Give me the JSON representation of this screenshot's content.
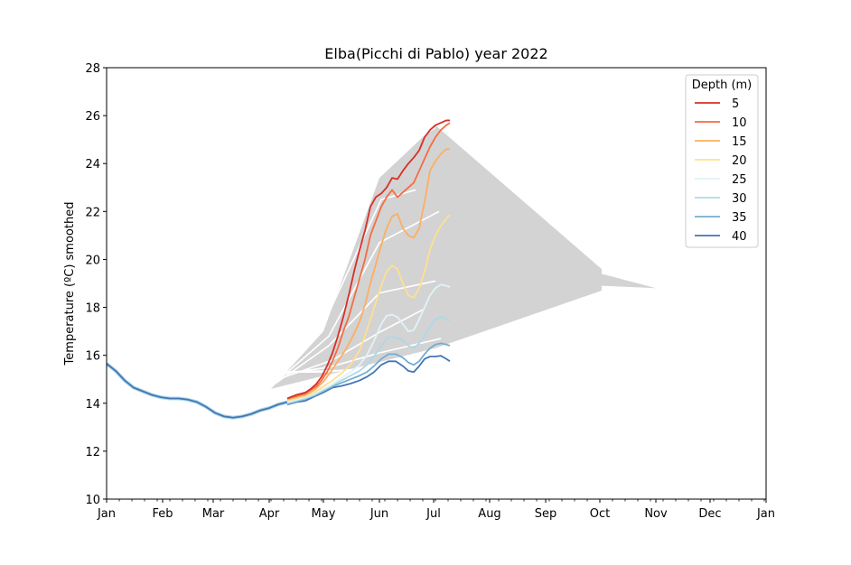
{
  "chart_data": {
    "type": "line",
    "title": "Elba(Picchi di Pablo) year 2022",
    "xlabel": "",
    "ylabel": "Temperature (ºC) smoothed",
    "x_ticks": [
      "Jan",
      "Feb",
      "Mar",
      "Apr",
      "May",
      "Jun",
      "Jul",
      "Aug",
      "Sep",
      "Oct",
      "Nov",
      "Dec",
      "Jan"
    ],
    "x_tick_days": [
      0,
      31,
      59,
      90,
      120,
      151,
      181,
      212,
      243,
      273,
      304,
      334,
      365
    ],
    "xlim_days": [
      0,
      365
    ],
    "ylim": [
      10,
      28
    ],
    "y_ticks": [
      "10",
      "12",
      "14",
      "16",
      "18",
      "20",
      "22",
      "24",
      "26",
      "28"
    ],
    "grid": false,
    "legend": {
      "title": "Depth (m)",
      "placement": "top-right"
    },
    "shaded_envelope": {
      "color": "#d3d3d3",
      "upper": [
        [
          91,
          14.6
        ],
        [
          120,
          17.0
        ],
        [
          151,
          23.4
        ],
        [
          182,
          25.6
        ],
        [
          274,
          19.6
        ],
        [
          274,
          19.4
        ],
        [
          304,
          18.8
        ]
      ],
      "lower": [
        [
          304,
          18.8
        ],
        [
          274,
          18.9
        ],
        [
          274,
          18.7
        ],
        [
          182,
          16.3
        ],
        [
          91,
          14.6
        ]
      ]
    },
    "reference_lines": {
      "color": "#ffffff",
      "lines": [
        [
          [
            82,
            13.9
          ],
          [
            95,
            14.2
          ]
        ],
        [
          [
            91,
            14.7
          ],
          [
            122,
            18.6
          ],
          [
            153,
            24.2
          ],
          [
            182,
            25.5
          ]
        ],
        [
          [
            91,
            14.7
          ],
          [
            122,
            17.6
          ],
          [
            152,
            22.5
          ],
          [
            171,
            22.9
          ]
        ],
        [
          [
            91,
            14.7
          ],
          [
            123,
            16.8
          ],
          [
            151,
            20.7
          ],
          [
            184,
            22.0
          ]
        ],
        [
          [
            93,
            14.8
          ],
          [
            123,
            16.4
          ],
          [
            151,
            18.6
          ],
          [
            182,
            19.1
          ]
        ],
        [
          [
            95,
            15.0
          ],
          [
            125,
            15.8
          ],
          [
            152,
            17.0
          ],
          [
            175,
            17.9
          ]
        ],
        [
          [
            95,
            15.2
          ],
          [
            123,
            15.5
          ],
          [
            151,
            16.1
          ],
          [
            185,
            16.7
          ]
        ],
        [
          [
            95,
            15.3
          ],
          [
            120,
            15.3
          ],
          [
            151,
            15.5
          ],
          [
            185,
            16.2
          ]
        ],
        [
          [
            92,
            15.3
          ],
          [
            120,
            15.35
          ],
          [
            151,
            15.4
          ],
          [
            188,
            16.3
          ]
        ]
      ]
    },
    "series": [
      {
        "name": "5",
        "color": "#d73027",
        "x": [
          100,
          105,
          110,
          113,
          116,
          119,
          122,
          125,
          128,
          131,
          134,
          137,
          140,
          143,
          146,
          149,
          152,
          155,
          158,
          161,
          164,
          167,
          170,
          173,
          176,
          179,
          182,
          185,
          188,
          190
        ],
        "y": [
          14.2,
          14.35,
          14.45,
          14.6,
          14.8,
          15.1,
          15.55,
          16.1,
          16.8,
          17.6,
          18.5,
          19.5,
          20.4,
          21.2,
          22.2,
          22.6,
          22.75,
          23.0,
          23.4,
          23.35,
          23.7,
          24.0,
          24.25,
          24.55,
          25.1,
          25.4,
          25.6,
          25.7,
          25.8,
          25.8
        ]
      },
      {
        "name": "10",
        "color": "#f46d43",
        "x": [
          100,
          105,
          110,
          113,
          116,
          119,
          122,
          125,
          128,
          131,
          134,
          137,
          140,
          143,
          146,
          149,
          152,
          155,
          158,
          161,
          164,
          167,
          170,
          173,
          176,
          179,
          182,
          185,
          188,
          190
        ],
        "y": [
          14.2,
          14.3,
          14.4,
          14.55,
          14.7,
          14.95,
          15.3,
          15.75,
          16.3,
          17.0,
          17.6,
          18.4,
          19.2,
          20.0,
          21.0,
          21.6,
          22.2,
          22.6,
          22.9,
          22.6,
          22.8,
          23.0,
          23.2,
          23.7,
          24.2,
          24.7,
          25.1,
          25.4,
          25.6,
          25.7
        ]
      },
      {
        "name": "15",
        "color": "#fdae61",
        "x": [
          100,
          105,
          110,
          115,
          120,
          124,
          128,
          132,
          136,
          140,
          143,
          146,
          149,
          152,
          155,
          158,
          161,
          164,
          167,
          170,
          173,
          176,
          179,
          182,
          185,
          188,
          190
        ],
        "y": [
          14.15,
          14.25,
          14.35,
          14.55,
          14.9,
          15.3,
          15.75,
          16.2,
          16.75,
          17.4,
          18.1,
          19.0,
          19.8,
          20.6,
          21.3,
          21.8,
          21.9,
          21.3,
          21.0,
          20.9,
          21.3,
          22.4,
          23.7,
          24.1,
          24.4,
          24.6,
          24.6
        ]
      },
      {
        "name": "20",
        "color": "#fee090",
        "x": [
          100,
          105,
          110,
          115,
          120,
          125,
          130,
          135,
          140,
          143,
          146,
          149,
          152,
          155,
          158,
          161,
          164,
          167,
          170,
          173,
          176,
          179,
          182,
          185,
          188,
          190
        ],
        "y": [
          14.1,
          14.2,
          14.3,
          14.45,
          14.7,
          14.95,
          15.25,
          15.6,
          16.2,
          16.8,
          17.5,
          18.2,
          18.9,
          19.5,
          19.75,
          19.6,
          19.0,
          18.5,
          18.4,
          18.8,
          19.5,
          20.4,
          21.0,
          21.4,
          21.7,
          21.85
        ]
      },
      {
        "name": "25",
        "color": "#e0f3f8",
        "x": [
          100,
          105,
          110,
          115,
          120,
          125,
          130,
          135,
          140,
          144,
          148,
          152,
          155,
          158,
          161,
          164,
          167,
          170,
          173,
          176,
          179,
          182,
          185,
          188,
          190
        ],
        "y": [
          14.05,
          14.15,
          14.25,
          14.4,
          14.6,
          14.8,
          15.05,
          15.3,
          15.6,
          16.0,
          16.6,
          17.3,
          17.65,
          17.7,
          17.6,
          17.3,
          17.0,
          17.05,
          17.5,
          18.0,
          18.5,
          18.8,
          18.95,
          18.9,
          18.85
        ]
      },
      {
        "name": "30",
        "color": "#abd9e9",
        "x": [
          100,
          105,
          110,
          115,
          120,
          125,
          130,
          135,
          140,
          144,
          148,
          152,
          156,
          160,
          164,
          167,
          170,
          173,
          176,
          179,
          182,
          185,
          188,
          190
        ],
        "y": [
          14.0,
          14.1,
          14.2,
          14.35,
          14.55,
          14.75,
          14.95,
          15.15,
          15.35,
          15.6,
          15.95,
          16.4,
          16.75,
          16.75,
          16.6,
          16.4,
          16.3,
          16.5,
          16.8,
          17.2,
          17.5,
          17.6,
          17.5,
          17.45
        ]
      },
      {
        "name": "35",
        "color": "#74add1",
        "x": [
          100,
          105,
          110,
          115,
          120,
          125,
          130,
          135,
          140,
          144,
          148,
          152,
          156,
          160,
          164,
          167,
          170,
          173,
          176,
          179,
          182,
          185,
          188,
          190
        ],
        "y": [
          13.98,
          14.08,
          14.18,
          14.32,
          14.5,
          14.7,
          14.85,
          15.0,
          15.15,
          15.3,
          15.55,
          15.85,
          16.05,
          16.05,
          15.9,
          15.7,
          15.6,
          15.75,
          16.05,
          16.3,
          16.45,
          16.5,
          16.45,
          16.4
        ]
      },
      {
        "name": "40",
        "color": "#4575b4",
        "x": [
          100,
          105,
          110,
          115,
          120,
          125,
          130,
          135,
          140,
          144,
          148,
          152,
          156,
          160,
          164,
          167,
          170,
          173,
          176,
          179,
          182,
          185,
          188,
          190
        ],
        "y": [
          13.95,
          14.05,
          14.1,
          14.28,
          14.45,
          14.65,
          14.72,
          14.82,
          14.95,
          15.1,
          15.3,
          15.6,
          15.75,
          15.75,
          15.55,
          15.35,
          15.3,
          15.55,
          15.85,
          15.95,
          15.95,
          15.98,
          15.85,
          15.75
        ]
      }
    ],
    "common_segment": {
      "x": [
        0,
        5,
        10,
        15,
        20,
        25,
        30,
        35,
        40,
        45,
        50,
        55,
        60,
        65,
        70,
        75,
        80,
        85,
        90,
        95,
        100
      ],
      "y": [
        15.65,
        15.35,
        14.95,
        14.65,
        14.5,
        14.35,
        14.25,
        14.2,
        14.2,
        14.15,
        14.05,
        13.85,
        13.6,
        13.45,
        13.4,
        13.45,
        13.55,
        13.7,
        13.8,
        13.95,
        14.05
      ]
    }
  }
}
